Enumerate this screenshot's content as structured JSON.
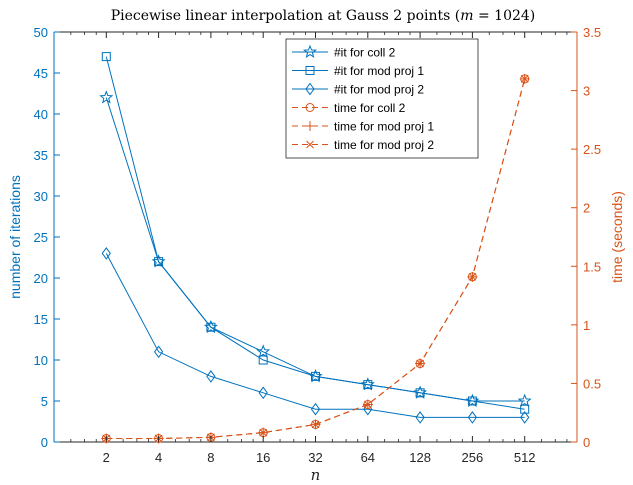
{
  "chart_data": {
    "type": "line",
    "title": "Piecewise linear interpolation at Gauss 2 points (m = 1024)",
    "xlabel": "n",
    "x_scale": "log2",
    "x": [
      2,
      4,
      8,
      16,
      32,
      64,
      128,
      256,
      512
    ],
    "x_tick_labels": [
      "2",
      "4",
      "8",
      "16",
      "32",
      "64",
      "128",
      "256",
      "512"
    ],
    "xlim": [
      1,
      1024
    ],
    "left_axis": {
      "label": "number of iterations",
      "color": "#0072BD",
      "ylim": [
        0,
        50
      ],
      "ticks": [
        "0",
        "5",
        "10",
        "15",
        "20",
        "25",
        "30",
        "35",
        "40",
        "45",
        "50"
      ]
    },
    "right_axis": {
      "label": "time (seconds)",
      "color": "#D95319",
      "ylim": [
        0,
        3.5
      ],
      "ticks": [
        "0",
        "0.5",
        "1",
        "1.5",
        "2",
        "2.5",
        "3",
        "3.5"
      ]
    },
    "legend_position": "top-center",
    "series": [
      {
        "name": "#it for coll 2",
        "axis": "left",
        "marker": "star",
        "style": "solid",
        "values": [
          42,
          22,
          14,
          11,
          8,
          7,
          6,
          5,
          5
        ]
      },
      {
        "name": "#it for mod proj 1",
        "axis": "left",
        "marker": "square",
        "style": "solid",
        "values": [
          47,
          22,
          14,
          10,
          8,
          7,
          6,
          5,
          4
        ]
      },
      {
        "name": "#it for mod proj 2",
        "axis": "left",
        "marker": "diamond",
        "style": "solid",
        "values": [
          23,
          11,
          8,
          6,
          4,
          4,
          3,
          3,
          3
        ]
      },
      {
        "name": "time for coll 2",
        "axis": "right",
        "marker": "circle",
        "style": "dashed",
        "values": [
          0.03,
          0.03,
          0.04,
          0.08,
          0.15,
          0.32,
          0.67,
          1.41,
          3.1
        ]
      },
      {
        "name": "time for mod proj 1",
        "axis": "right",
        "marker": "plus",
        "style": "dashed",
        "values": [
          0.03,
          0.03,
          0.04,
          0.08,
          0.15,
          0.32,
          0.67,
          1.41,
          3.1
        ]
      },
      {
        "name": "time for mod proj 2",
        "axis": "right",
        "marker": "x",
        "style": "dashed",
        "values": [
          0.03,
          0.03,
          0.04,
          0.08,
          0.15,
          0.32,
          0.67,
          1.41,
          3.1
        ]
      }
    ]
  }
}
